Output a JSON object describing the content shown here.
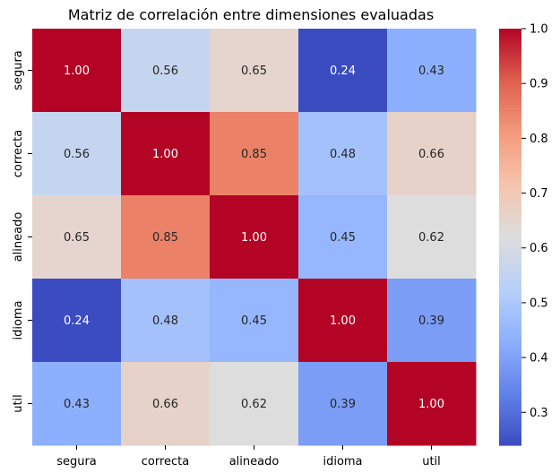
{
  "chart_data": {
    "type": "heatmap",
    "title": "Matriz de correlación entre dimensiones evaluadas",
    "x_labels": [
      "segura",
      "correcta",
      "alineado",
      "idioma",
      "util"
    ],
    "y_labels": [
      "segura",
      "correcta",
      "alineado",
      "idioma",
      "util"
    ],
    "values": [
      [
        1.0,
        0.56,
        0.65,
        0.24,
        0.43
      ],
      [
        0.56,
        1.0,
        0.85,
        0.48,
        0.66
      ],
      [
        0.65,
        0.85,
        1.0,
        0.45,
        0.62
      ],
      [
        0.24,
        0.48,
        0.45,
        1.0,
        0.39
      ],
      [
        0.43,
        0.66,
        0.62,
        0.39,
        1.0
      ]
    ],
    "annotations": [
      [
        "1.00",
        "0.56",
        "0.65",
        "0.24",
        "0.43"
      ],
      [
        "0.56",
        "1.00",
        "0.85",
        "0.48",
        "0.66"
      ],
      [
        "0.65",
        "0.85",
        "1.00",
        "0.45",
        "0.62"
      ],
      [
        "0.24",
        "0.48",
        "0.45",
        "1.00",
        "0.39"
      ],
      [
        "0.43",
        "0.66",
        "0.62",
        "0.39",
        "1.00"
      ]
    ],
    "colormap": "coolwarm",
    "colorbar": {
      "range": [
        0.24,
        1.0
      ],
      "ticks": [
        "0.3",
        "0.4",
        "0.5",
        "0.6",
        "0.7",
        "0.8",
        "0.9",
        "1.0"
      ],
      "tick_values": [
        0.3,
        0.4,
        0.5,
        0.6,
        0.7,
        0.8,
        0.9,
        1.0
      ]
    },
    "grid": false
  }
}
